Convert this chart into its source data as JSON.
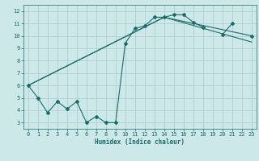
{
  "xlabel": "Humidex (Indice chaleur)",
  "bg_color": "#cce8e8",
  "grid_color": "#aacccc",
  "line_color": "#1a6b6b",
  "xlim": [
    -0.5,
    23.5
  ],
  "ylim": [
    2.5,
    12.5
  ],
  "xticks": [
    0,
    1,
    2,
    3,
    4,
    5,
    6,
    7,
    8,
    9,
    10,
    11,
    12,
    13,
    14,
    15,
    16,
    17,
    18,
    19,
    20,
    21,
    22,
    23
  ],
  "yticks": [
    3,
    4,
    5,
    6,
    7,
    8,
    9,
    10,
    11,
    12
  ],
  "zigzag_segments": [
    {
      "x": [
        0,
        1,
        2,
        3,
        4,
        5,
        6,
        7,
        8,
        9,
        10,
        11,
        12,
        13,
        14,
        15,
        16,
        17,
        18
      ],
      "y": [
        6.0,
        5.0,
        3.8,
        4.7,
        4.1,
        4.7,
        3.0,
        3.5,
        3.0,
        3.0,
        9.4,
        10.6,
        10.8,
        11.5,
        11.5,
        11.7,
        11.7,
        11.1,
        10.7
      ]
    },
    {
      "x": [
        20,
        21
      ],
      "y": [
        10.1,
        11.0
      ]
    },
    {
      "x": [
        23
      ],
      "y": [
        10.0
      ]
    }
  ],
  "line2": {
    "x": [
      0,
      14,
      23
    ],
    "y": [
      6.0,
      11.5,
      10.0
    ]
  },
  "line3": {
    "x": [
      0,
      14,
      23
    ],
    "y": [
      6.0,
      11.5,
      9.5
    ]
  },
  "xlabel_fontsize": 5.5,
  "tick_fontsize": 5.0
}
